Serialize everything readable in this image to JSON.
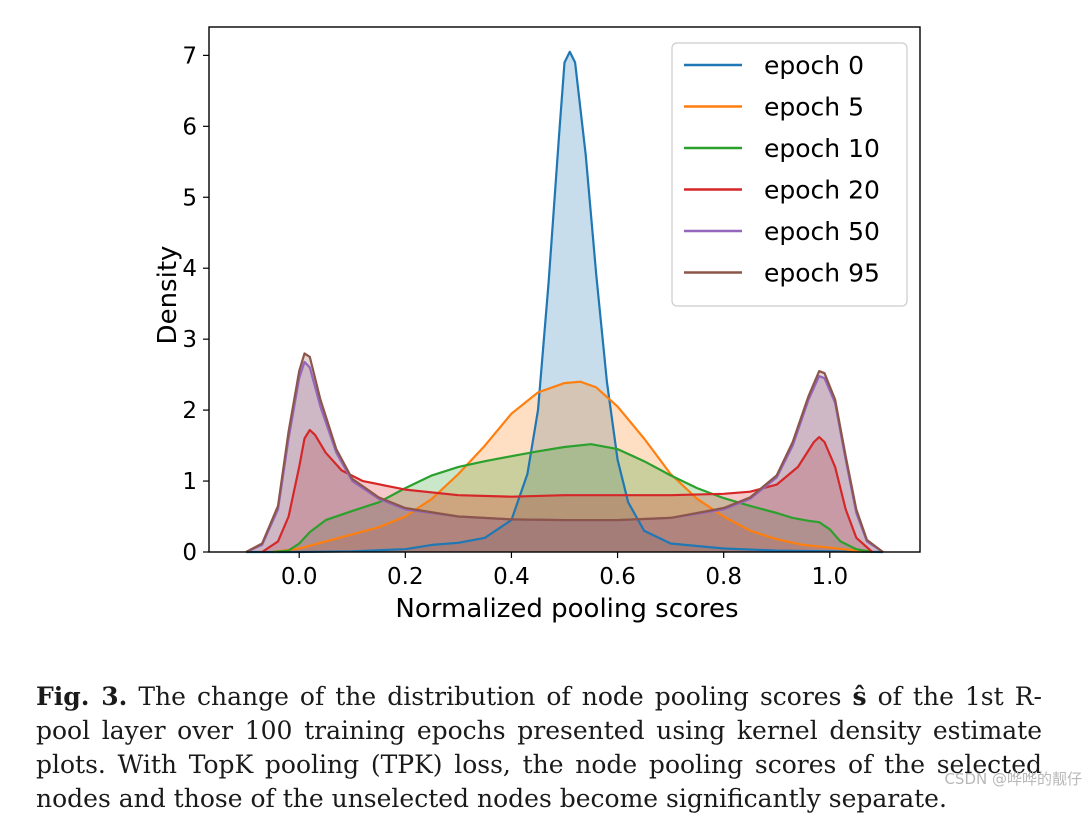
{
  "chart_data": {
    "type": "area",
    "title": "",
    "xlabel": "Normalized pooling scores",
    "ylabel": "Density",
    "xlim": [
      -0.17,
      1.17
    ],
    "ylim": [
      0,
      7.4
    ],
    "xticks": [
      "0.0",
      "0.2",
      "0.4",
      "0.6",
      "0.8",
      "1.0"
    ],
    "xtick_values": [
      0.0,
      0.2,
      0.4,
      0.6,
      0.8,
      1.0
    ],
    "yticks": [
      "0",
      "1",
      "2",
      "3",
      "4",
      "5",
      "6",
      "7"
    ],
    "ytick_values": [
      0,
      1,
      2,
      3,
      4,
      5,
      6,
      7
    ],
    "legend_position": "upper-right",
    "series": [
      {
        "name": "epoch 0",
        "color": "#1f77b4",
        "points": [
          [
            -0.1,
            0
          ],
          [
            0,
            0
          ],
          [
            0.1,
            0.01
          ],
          [
            0.2,
            0.04
          ],
          [
            0.25,
            0.1
          ],
          [
            0.3,
            0.13
          ],
          [
            0.35,
            0.2
          ],
          [
            0.4,
            0.45
          ],
          [
            0.43,
            1.1
          ],
          [
            0.45,
            2.0
          ],
          [
            0.47,
            3.8
          ],
          [
            0.49,
            5.9
          ],
          [
            0.5,
            6.9
          ],
          [
            0.51,
            7.05
          ],
          [
            0.52,
            6.9
          ],
          [
            0.54,
            5.6
          ],
          [
            0.56,
            3.9
          ],
          [
            0.58,
            2.4
          ],
          [
            0.6,
            1.3
          ],
          [
            0.62,
            0.7
          ],
          [
            0.65,
            0.3
          ],
          [
            0.7,
            0.12
          ],
          [
            0.8,
            0.05
          ],
          [
            0.9,
            0.02
          ],
          [
            1.0,
            0.01
          ],
          [
            1.1,
            0
          ]
        ]
      },
      {
        "name": "epoch 5",
        "color": "#ff7f0e",
        "points": [
          [
            -0.05,
            0
          ],
          [
            0,
            0.05
          ],
          [
            0.05,
            0.15
          ],
          [
            0.1,
            0.25
          ],
          [
            0.15,
            0.35
          ],
          [
            0.2,
            0.5
          ],
          [
            0.25,
            0.75
          ],
          [
            0.3,
            1.1
          ],
          [
            0.35,
            1.5
          ],
          [
            0.4,
            1.95
          ],
          [
            0.45,
            2.25
          ],
          [
            0.5,
            2.38
          ],
          [
            0.53,
            2.4
          ],
          [
            0.56,
            2.32
          ],
          [
            0.6,
            2.05
          ],
          [
            0.65,
            1.6
          ],
          [
            0.7,
            1.1
          ],
          [
            0.75,
            0.75
          ],
          [
            0.8,
            0.5
          ],
          [
            0.85,
            0.3
          ],
          [
            0.9,
            0.18
          ],
          [
            0.95,
            0.1
          ],
          [
            1.0,
            0.06
          ],
          [
            1.05,
            0.02
          ],
          [
            1.08,
            0
          ]
        ]
      },
      {
        "name": "epoch 10",
        "color": "#2ca02c",
        "points": [
          [
            -0.05,
            0
          ],
          [
            -0.02,
            0.02
          ],
          [
            0,
            0.12
          ],
          [
            0.02,
            0.28
          ],
          [
            0.05,
            0.45
          ],
          [
            0.1,
            0.58
          ],
          [
            0.15,
            0.7
          ],
          [
            0.2,
            0.9
          ],
          [
            0.25,
            1.08
          ],
          [
            0.3,
            1.2
          ],
          [
            0.35,
            1.28
          ],
          [
            0.4,
            1.35
          ],
          [
            0.45,
            1.42
          ],
          [
            0.5,
            1.48
          ],
          [
            0.55,
            1.52
          ],
          [
            0.6,
            1.45
          ],
          [
            0.65,
            1.28
          ],
          [
            0.7,
            1.08
          ],
          [
            0.75,
            0.9
          ],
          [
            0.8,
            0.76
          ],
          [
            0.85,
            0.65
          ],
          [
            0.9,
            0.55
          ],
          [
            0.93,
            0.48
          ],
          [
            0.96,
            0.44
          ],
          [
            0.98,
            0.42
          ],
          [
            1.0,
            0.32
          ],
          [
            1.02,
            0.15
          ],
          [
            1.05,
            0.04
          ],
          [
            1.08,
            0
          ]
        ]
      },
      {
        "name": "epoch 20",
        "color": "#d62728",
        "points": [
          [
            -0.07,
            0
          ],
          [
            -0.04,
            0.15
          ],
          [
            -0.02,
            0.5
          ],
          [
            0,
            1.2
          ],
          [
            0.01,
            1.6
          ],
          [
            0.02,
            1.72
          ],
          [
            0.03,
            1.65
          ],
          [
            0.05,
            1.4
          ],
          [
            0.08,
            1.15
          ],
          [
            0.12,
            1.0
          ],
          [
            0.2,
            0.88
          ],
          [
            0.3,
            0.8
          ],
          [
            0.4,
            0.78
          ],
          [
            0.5,
            0.8
          ],
          [
            0.6,
            0.8
          ],
          [
            0.7,
            0.8
          ],
          [
            0.8,
            0.82
          ],
          [
            0.85,
            0.85
          ],
          [
            0.9,
            0.95
          ],
          [
            0.94,
            1.2
          ],
          [
            0.97,
            1.55
          ],
          [
            0.98,
            1.62
          ],
          [
            0.99,
            1.55
          ],
          [
            1.01,
            1.2
          ],
          [
            1.03,
            0.6
          ],
          [
            1.05,
            0.2
          ],
          [
            1.08,
            0
          ]
        ]
      },
      {
        "name": "epoch 50",
        "color": "#9467bd",
        "points": [
          [
            -0.1,
            0
          ],
          [
            -0.07,
            0.1
          ],
          [
            -0.04,
            0.6
          ],
          [
            -0.02,
            1.6
          ],
          [
            0,
            2.45
          ],
          [
            0.01,
            2.68
          ],
          [
            0.02,
            2.6
          ],
          [
            0.04,
            2.05
          ],
          [
            0.07,
            1.4
          ],
          [
            0.1,
            1.0
          ],
          [
            0.15,
            0.75
          ],
          [
            0.2,
            0.6
          ],
          [
            0.3,
            0.5
          ],
          [
            0.4,
            0.46
          ],
          [
            0.5,
            0.45
          ],
          [
            0.6,
            0.45
          ],
          [
            0.7,
            0.48
          ],
          [
            0.8,
            0.6
          ],
          [
            0.85,
            0.75
          ],
          [
            0.9,
            1.05
          ],
          [
            0.93,
            1.5
          ],
          [
            0.96,
            2.15
          ],
          [
            0.98,
            2.48
          ],
          [
            0.99,
            2.45
          ],
          [
            1.01,
            2.1
          ],
          [
            1.03,
            1.3
          ],
          [
            1.05,
            0.55
          ],
          [
            1.07,
            0.15
          ],
          [
            1.1,
            0
          ]
        ]
      },
      {
        "name": "epoch 95",
        "color": "#8c564b",
        "points": [
          [
            -0.1,
            0
          ],
          [
            -0.07,
            0.12
          ],
          [
            -0.04,
            0.65
          ],
          [
            -0.02,
            1.7
          ],
          [
            0,
            2.55
          ],
          [
            0.01,
            2.8
          ],
          [
            0.02,
            2.75
          ],
          [
            0.04,
            2.15
          ],
          [
            0.07,
            1.45
          ],
          [
            0.1,
            1.03
          ],
          [
            0.15,
            0.77
          ],
          [
            0.2,
            0.62
          ],
          [
            0.3,
            0.5
          ],
          [
            0.4,
            0.46
          ],
          [
            0.5,
            0.45
          ],
          [
            0.6,
            0.45
          ],
          [
            0.7,
            0.48
          ],
          [
            0.8,
            0.62
          ],
          [
            0.85,
            0.77
          ],
          [
            0.9,
            1.08
          ],
          [
            0.93,
            1.55
          ],
          [
            0.96,
            2.2
          ],
          [
            0.98,
            2.55
          ],
          [
            0.99,
            2.52
          ],
          [
            1.01,
            2.15
          ],
          [
            1.03,
            1.35
          ],
          [
            1.05,
            0.6
          ],
          [
            1.07,
            0.17
          ],
          [
            1.1,
            0
          ]
        ]
      }
    ]
  },
  "caption": {
    "label": "Fig. 3.",
    "text_before_symbol": " The change of the distribution of node pooling scores ",
    "symbol": "ŝ",
    "text_after_symbol": " of the 1st R-pool layer over 100 training epochs presented using kernel density estimate plots. With TopK pooling (TPK) loss, the node pooling scores of the selected nodes and those of the unselected nodes become significantly separate."
  },
  "watermark": "CSDN @哗哗的靓仔"
}
